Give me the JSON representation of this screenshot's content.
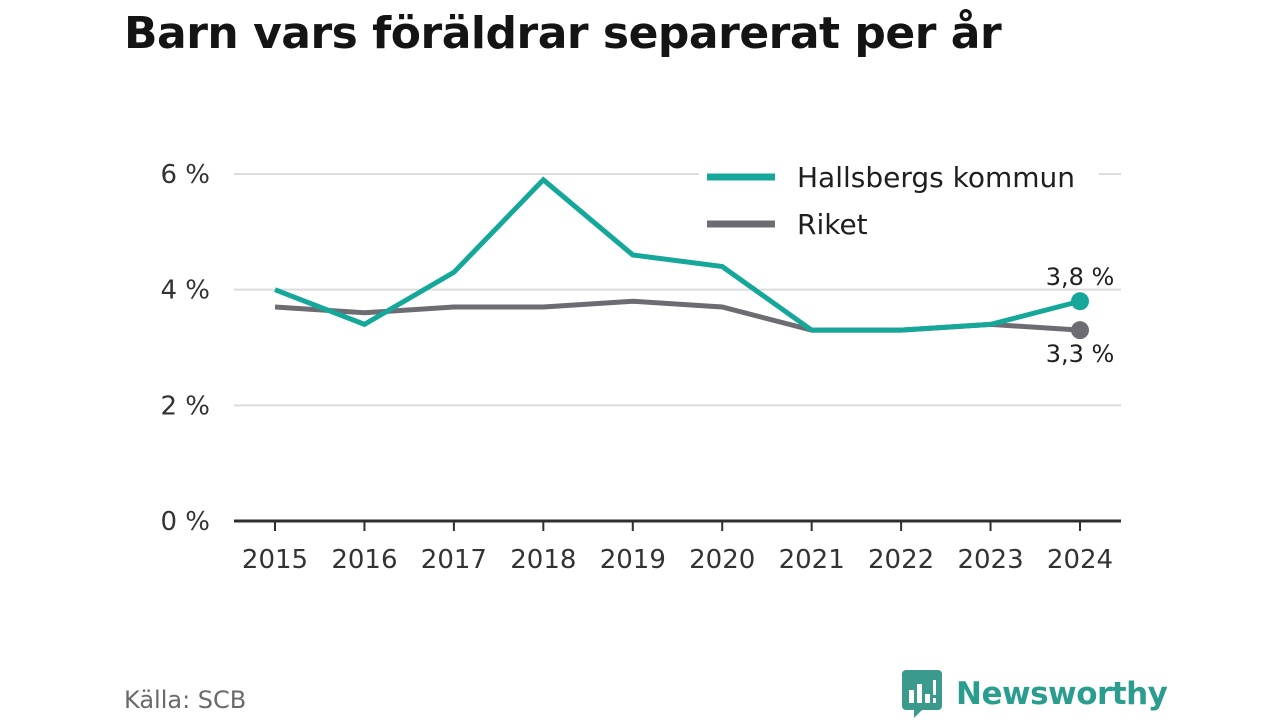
{
  "title": "Barn vars föräldrar separerat per år",
  "source": "Källa: SCB",
  "brand": {
    "name": "Newsworthy",
    "icon": "newsworthy-logo-icon",
    "color": "#3a9a8c"
  },
  "chart_data": {
    "type": "line",
    "title": "Barn vars föräldrar separerat per år",
    "xlabel": "",
    "ylabel": "",
    "x": [
      "2015",
      "2016",
      "2017",
      "2018",
      "2019",
      "2020",
      "2021",
      "2022",
      "2023",
      "2024"
    ],
    "ylim": [
      0,
      6
    ],
    "yticks": [
      0,
      2,
      4,
      6
    ],
    "ytick_labels": [
      "0 %",
      "2 %",
      "4 %",
      "6 %"
    ],
    "grid": true,
    "legend": "top-right",
    "series": [
      {
        "name": "Hallsbergs kommun",
        "color": "#15a89a",
        "values": [
          4.0,
          3.4,
          4.3,
          5.9,
          4.6,
          4.4,
          3.3,
          3.3,
          3.4,
          3.8
        ],
        "end_label": "3,8 %"
      },
      {
        "name": "Riket",
        "color": "#6d6c72",
        "values": [
          3.7,
          3.6,
          3.7,
          3.7,
          3.8,
          3.7,
          3.3,
          3.3,
          3.4,
          3.3
        ],
        "end_label": "3,3 %"
      }
    ]
  }
}
